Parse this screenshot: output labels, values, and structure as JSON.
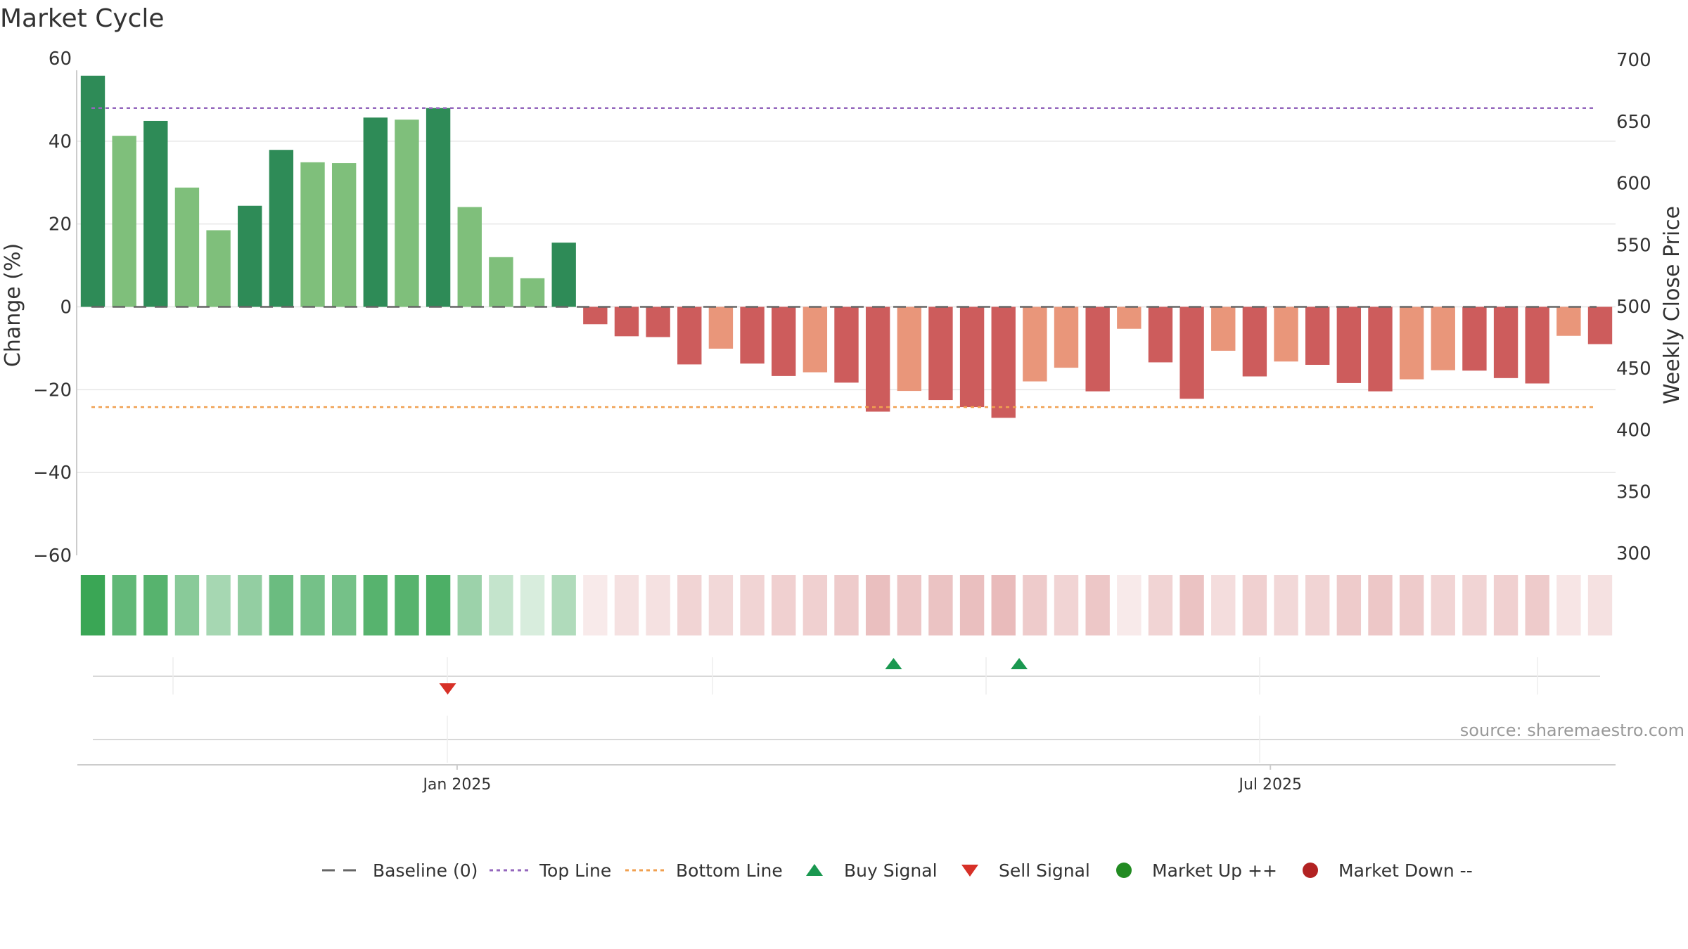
{
  "chart_data": {
    "type": "bar",
    "title": "Market Cycle",
    "ylabel": "Change (%)",
    "y2label": "Weekly Close Price",
    "ylim": [
      -60,
      60
    ],
    "y2lim": [
      300,
      700
    ],
    "yticks": [
      60,
      40,
      20,
      0,
      -20,
      -40,
      -60
    ],
    "ytick_labels": [
      "60",
      "40",
      "20",
      "0",
      "−20",
      "−40",
      "−60"
    ],
    "y2ticks": [
      700,
      650,
      600,
      550,
      500,
      450,
      400,
      350,
      300
    ],
    "y2tick_labels": [
      "700",
      "650",
      "600",
      "550",
      "500",
      "450",
      "400",
      "350",
      "300"
    ],
    "x_tick_labels": [
      {
        "label": "Jan 2025",
        "bar_index": 11.6
      },
      {
        "label": "Jul 2025",
        "bar_index": 37.5
      }
    ],
    "grid": true,
    "values": [
      55.8,
      41.3,
      44.9,
      28.8,
      18.5,
      24.4,
      37.9,
      34.9,
      34.7,
      45.7,
      45.2,
      48.0,
      24.1,
      12.0,
      6.9,
      15.5,
      -4.2,
      -7.1,
      -7.3,
      -13.9,
      -10.1,
      -13.7,
      -16.7,
      -15.8,
      -18.3,
      -25.3,
      -20.3,
      -22.5,
      -24.2,
      -26.8,
      -18.0,
      -14.7,
      -20.4,
      -5.3,
      -13.4,
      -22.2,
      -10.6,
      -16.8,
      -13.2,
      -14.0,
      -18.4,
      -20.4,
      -17.5,
      -15.3,
      -15.4,
      -17.2,
      -18.5,
      -7.0,
      -9.0
    ],
    "baseline": {
      "name": "Baseline (0)",
      "value": 0,
      "color": "#666666"
    },
    "top_line": {
      "name": "Top Line",
      "value": 48,
      "color": "#9467bd"
    },
    "bottom_line": {
      "name": "Bottom Line",
      "value": -24.2,
      "color": "#f0a050"
    },
    "buy_signals": [
      25.5,
      29.5
    ],
    "sell_signals": [
      11.3
    ],
    "heat_strip": {
      "description_free": true,
      "alphas": [
        1.0,
        0.8,
        0.85,
        0.6,
        0.45,
        0.55,
        0.75,
        0.7,
        0.7,
        0.85,
        0.85,
        0.9,
        0.5,
        0.3,
        0.2,
        0.4,
        0.25,
        0.35,
        0.35,
        0.5,
        0.45,
        0.5,
        0.55,
        0.55,
        0.6,
        0.75,
        0.65,
        0.7,
        0.75,
        0.8,
        0.6,
        0.5,
        0.65,
        0.25,
        0.5,
        0.7,
        0.4,
        0.55,
        0.45,
        0.5,
        0.6,
        0.65,
        0.6,
        0.5,
        0.5,
        0.55,
        0.6,
        0.3,
        0.35
      ]
    },
    "colors": {
      "strong_up": "#2e8b57",
      "up": "#7fbf7b",
      "strong_down": "#cd5c5c",
      "down": "#e9967a",
      "buy": "#1a9850",
      "sell": "#d73027",
      "market_up": "#228b22",
      "market_down": "#b22222",
      "heat_green": "#3aa655",
      "heat_red": "#d07070"
    },
    "strong_flags": [
      1,
      0,
      1,
      0,
      0,
      1,
      1,
      0,
      0,
      1,
      0,
      1,
      0,
      0,
      0,
      1,
      1,
      1,
      1,
      1,
      0,
      1,
      1,
      0,
      1,
      1,
      0,
      1,
      1,
      1,
      0,
      0,
      1,
      0,
      1,
      1,
      0,
      1,
      0,
      1,
      1,
      1,
      0,
      0,
      1,
      1,
      1,
      0,
      1
    ],
    "source": "source: sharemaestro.com",
    "legend": [
      {
        "key": "baseline",
        "label": "Baseline (0)",
        "icon": "dash-line-icon"
      },
      {
        "key": "top",
        "label": "Top Line",
        "icon": "dotted-line-icon"
      },
      {
        "key": "bottom",
        "label": "Bottom Line",
        "icon": "dotted-line-icon"
      },
      {
        "key": "buy",
        "label": "Buy Signal",
        "icon": "triangle-up-icon"
      },
      {
        "key": "sell",
        "label": "Sell Signal",
        "icon": "triangle-down-icon"
      },
      {
        "key": "mup",
        "label": "Market Up ++",
        "icon": "circle-icon"
      },
      {
        "key": "mdown",
        "label": "Market Down --",
        "icon": "circle-icon"
      }
    ]
  }
}
